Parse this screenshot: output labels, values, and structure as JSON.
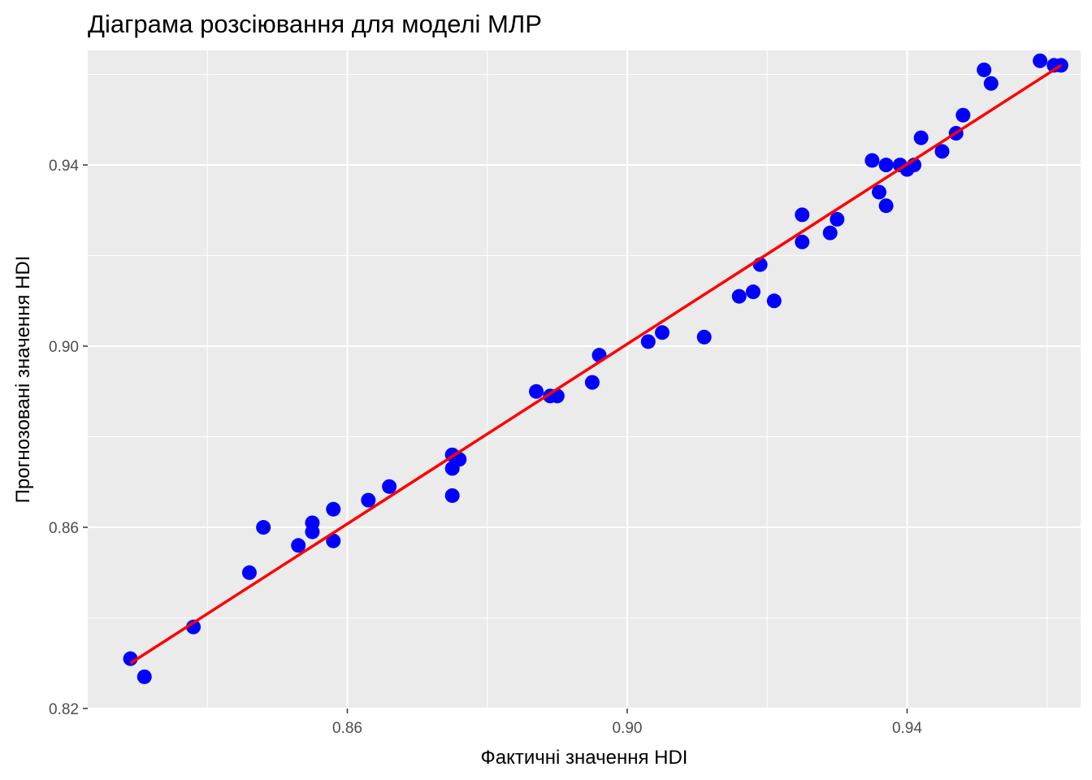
{
  "chart_data": {
    "type": "scatter",
    "title": "Діаграма розсіювання для моделі МЛР",
    "xlabel": "Фактичні значення HDI",
    "ylabel": "Прогнозовані значення HDI",
    "xlim": [
      0.8229,
      0.9648
    ],
    "ylim": [
      0.82,
      0.9653
    ],
    "x_ticks": [
      0.86,
      0.9,
      0.94
    ],
    "y_ticks": [
      0.82,
      0.86,
      0.9,
      0.94
    ],
    "x_tick_labels": [
      "0.86",
      "0.90",
      "0.94"
    ],
    "y_tick_labels": [
      "0.82",
      "0.86",
      "0.90",
      "0.94"
    ],
    "grid": true,
    "background_color": "#ebebeb",
    "point_color": "#0000ff",
    "line_color": "#ff0000",
    "points": [
      {
        "x": 0.829,
        "y": 0.831
      },
      {
        "x": 0.831,
        "y": 0.827
      },
      {
        "x": 0.838,
        "y": 0.838
      },
      {
        "x": 0.846,
        "y": 0.85
      },
      {
        "x": 0.848,
        "y": 0.86
      },
      {
        "x": 0.853,
        "y": 0.856
      },
      {
        "x": 0.855,
        "y": 0.861
      },
      {
        "x": 0.855,
        "y": 0.859
      },
      {
        "x": 0.858,
        "y": 0.864
      },
      {
        "x": 0.858,
        "y": 0.857
      },
      {
        "x": 0.863,
        "y": 0.866
      },
      {
        "x": 0.866,
        "y": 0.869
      },
      {
        "x": 0.875,
        "y": 0.876
      },
      {
        "x": 0.875,
        "y": 0.873
      },
      {
        "x": 0.876,
        "y": 0.875
      },
      {
        "x": 0.875,
        "y": 0.867
      },
      {
        "x": 0.887,
        "y": 0.89
      },
      {
        "x": 0.889,
        "y": 0.889
      },
      {
        "x": 0.89,
        "y": 0.889
      },
      {
        "x": 0.895,
        "y": 0.892
      },
      {
        "x": 0.896,
        "y": 0.898
      },
      {
        "x": 0.903,
        "y": 0.901
      },
      {
        "x": 0.905,
        "y": 0.903
      },
      {
        "x": 0.911,
        "y": 0.902
      },
      {
        "x": 0.916,
        "y": 0.911
      },
      {
        "x": 0.918,
        "y": 0.912
      },
      {
        "x": 0.919,
        "y": 0.918
      },
      {
        "x": 0.921,
        "y": 0.91
      },
      {
        "x": 0.925,
        "y": 0.929
      },
      {
        "x": 0.925,
        "y": 0.923
      },
      {
        "x": 0.929,
        "y": 0.925
      },
      {
        "x": 0.93,
        "y": 0.928
      },
      {
        "x": 0.935,
        "y": 0.941
      },
      {
        "x": 0.937,
        "y": 0.94
      },
      {
        "x": 0.939,
        "y": 0.94
      },
      {
        "x": 0.936,
        "y": 0.934
      },
      {
        "x": 0.937,
        "y": 0.931
      },
      {
        "x": 0.94,
        "y": 0.939
      },
      {
        "x": 0.941,
        "y": 0.94
      },
      {
        "x": 0.942,
        "y": 0.946
      },
      {
        "x": 0.945,
        "y": 0.943
      },
      {
        "x": 0.947,
        "y": 0.947
      },
      {
        "x": 0.948,
        "y": 0.951
      },
      {
        "x": 0.951,
        "y": 0.961
      },
      {
        "x": 0.952,
        "y": 0.958
      },
      {
        "x": 0.959,
        "y": 0.963
      },
      {
        "x": 0.961,
        "y": 0.962
      },
      {
        "x": 0.962,
        "y": 0.962
      }
    ],
    "fit_line": {
      "x": [
        0.829,
        0.962
      ],
      "y": [
        0.83,
        0.962
      ]
    }
  }
}
